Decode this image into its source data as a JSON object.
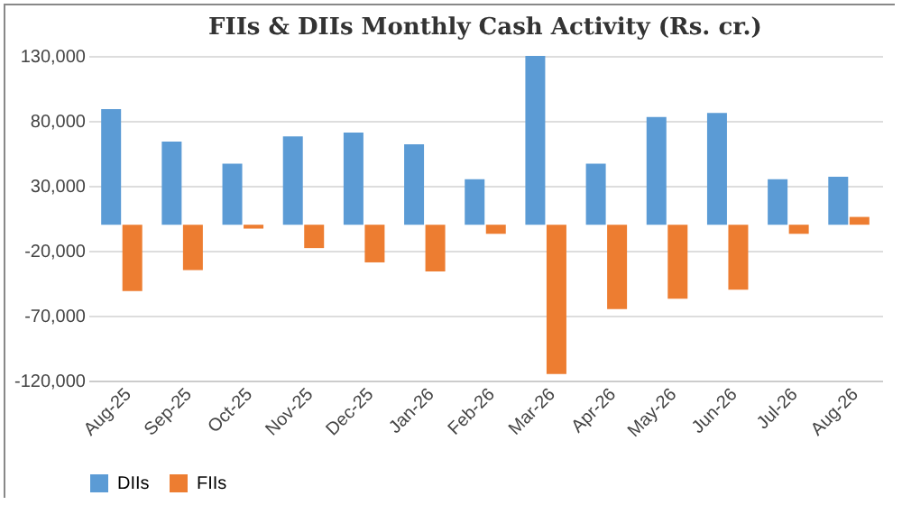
{
  "chart_data": {
    "type": "bar",
    "title": "FIIs & DIIs Monthly Cash Activity (Rs. cr.)",
    "categories": [
      "Aug-25",
      "Sep-25",
      "Oct-25",
      "Nov-25",
      "Dec-25",
      "Jan-26",
      "Feb-26",
      "Mar-26",
      "Apr-26",
      "May-26",
      "Jun-26",
      "Jul-26",
      "Aug-26"
    ],
    "series": [
      {
        "name": "DIIs",
        "color": "#5b9bd5",
        "values": [
          89000,
          64000,
          47000,
          68000,
          71000,
          62000,
          35000,
          130000,
          47000,
          83000,
          86000,
          35000,
          37000
        ]
      },
      {
        "name": "FIIs",
        "color": "#ed7d31",
        "values": [
          -51000,
          -35000,
          -3000,
          -18000,
          -29000,
          -36000,
          -7000,
          -115000,
          -65000,
          -57000,
          -50000,
          -7000,
          6000
        ]
      }
    ],
    "ylim": [
      -120000,
      130000
    ],
    "yticks": [
      {
        "value": -120000,
        "label": "-120,000"
      },
      {
        "value": -70000,
        "label": "-70,000"
      },
      {
        "value": -20000,
        "label": "-20,000"
      },
      {
        "value": 30000,
        "label": "30,000"
      },
      {
        "value": 80000,
        "label": "80,000"
      },
      {
        "value": 130000,
        "label": "130,000"
      }
    ],
    "grid": "y",
    "legend": "bottom"
  }
}
